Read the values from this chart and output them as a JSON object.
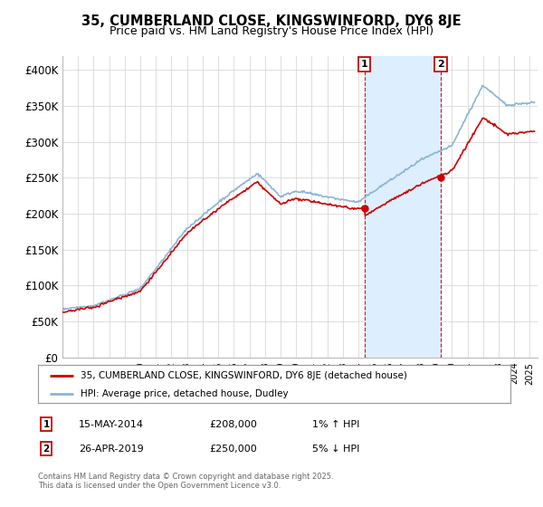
{
  "title_line1": "35, CUMBERLAND CLOSE, KINGSWINFORD, DY6 8JE",
  "title_line2": "Price paid vs. HM Land Registry's House Price Index (HPI)",
  "background_color": "#ffffff",
  "plot_bg_color": "#ffffff",
  "grid_color": "#d8d8d8",
  "hpi_color": "#89b4d8",
  "hpi_fill_color": "#ddeeff",
  "price_color": "#cc0000",
  "marker1_date": "15-MAY-2014",
  "marker1_price": 208000,
  "marker1_label": "1% ↑ HPI",
  "marker2_date": "26-APR-2019",
  "marker2_price": 250000,
  "marker2_label": "5% ↓ HPI",
  "legend_label1": "35, CUMBERLAND CLOSE, KINGSWINFORD, DY6 8JE (detached house)",
  "legend_label2": "HPI: Average price, detached house, Dudley",
  "footnote": "Contains HM Land Registry data © Crown copyright and database right 2025.\nThis data is licensed under the Open Government Licence v3.0.",
  "ylim": [
    0,
    420000
  ],
  "yticks": [
    0,
    50000,
    100000,
    150000,
    200000,
    250000,
    300000,
    350000,
    400000
  ],
  "ytick_labels": [
    "£0",
    "£50K",
    "£100K",
    "£150K",
    "£200K",
    "£250K",
    "£300K",
    "£350K",
    "£400K"
  ],
  "xlim_start": 1995.0,
  "xlim_end": 2025.5,
  "sale1_t": 2014.375,
  "sale2_t": 2019.292,
  "sale1_price": 208000,
  "sale2_price": 250000
}
